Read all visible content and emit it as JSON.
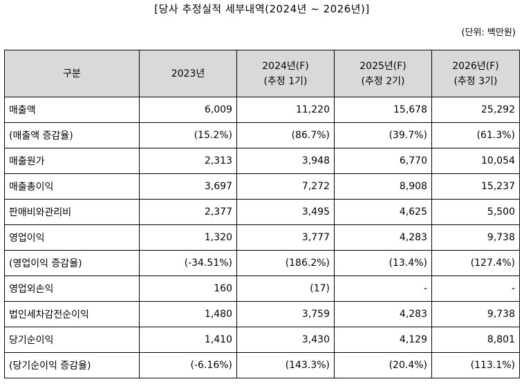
{
  "title": "[당사 추정실적 세부내역(2024년 ~ 2026년)]",
  "unit": "(단위: 백만원)",
  "table": {
    "header": [
      {
        "line1": "구분",
        "line2": ""
      },
      {
        "line1": "2023년",
        "line2": ""
      },
      {
        "line1": "2024년(F)",
        "line2": "(추정 1기)"
      },
      {
        "line1": "2025년(F)",
        "line2": "(추정 2기)"
      },
      {
        "line1": "2026년(F)",
        "line2": "(추정 3기)"
      }
    ],
    "rows": [
      [
        "매출액",
        "6,009",
        "11,220",
        "15,678",
        "25,292"
      ],
      [
        "(매출액 증감율)",
        "(15.2%)",
        "(86.7%)",
        "(39.7%)",
        "(61.3%)"
      ],
      [
        "매출원가",
        "2,313",
        "3,948",
        "6,770",
        "10,054"
      ],
      [
        "매출총이익",
        "3,697",
        "7,272",
        "8,908",
        "15,237"
      ],
      [
        "판매비와관리비",
        "2,377",
        "3,495",
        "4,625",
        "5,500"
      ],
      [
        "영업이익",
        "1,320",
        "3,777",
        "4,283",
        "9,738"
      ],
      [
        "(영업이익 증감율)",
        "(-34.51%)",
        "(186.2%)",
        "(13.4%)",
        "(127.4%)"
      ],
      [
        "영업외손익",
        "160",
        "(17)",
        "-",
        "-"
      ],
      [
        "법인세차감전순이익",
        "1,480",
        "3,759",
        "4,283",
        "9,738"
      ],
      [
        "당기순이익",
        "1,410",
        "3,430",
        "4,129",
        "8,801"
      ],
      [
        "(당기순이익 증감율)",
        "(-6.16%)",
        "(143.3%)",
        "(20.4%)",
        "(113.1%)"
      ]
    ]
  }
}
